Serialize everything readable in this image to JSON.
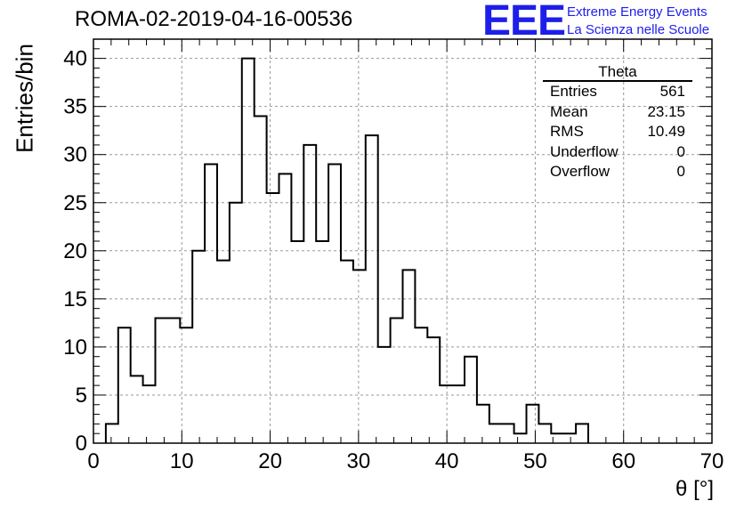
{
  "title": "ROMA-02-2019-04-16-00536",
  "logo": {
    "mark": "EEE",
    "line1": "Extreme Energy Events",
    "line2": "La Scienza nelle Scuole",
    "color": "#1e1eea"
  },
  "stats_box": {
    "header": "Theta",
    "rows": [
      {
        "label": "Entries",
        "value": "561"
      },
      {
        "label": "Mean",
        "value": "23.15"
      },
      {
        "label": "RMS",
        "value": "10.49"
      },
      {
        "label": "Underflow",
        "value": "0"
      },
      {
        "label": "Overflow",
        "value": "0"
      }
    ]
  },
  "chart_data": {
    "type": "histogram",
    "title": "ROMA-02-2019-04-16-00536",
    "xlabel": "θ [°]",
    "ylabel": "Entries/bin",
    "xlim": [
      0,
      70
    ],
    "ylim": [
      0,
      42
    ],
    "bin_width": 1.4,
    "bin_start": 1.4,
    "counts": [
      2,
      12,
      7,
      6,
      13,
      13,
      12,
      20,
      29,
      19,
      25,
      40,
      34,
      26,
      28,
      21,
      31,
      21,
      29,
      19,
      18,
      32,
      10,
      13,
      18,
      12,
      11,
      6,
      6,
      9,
      4,
      2,
      2,
      1,
      4,
      2,
      1,
      1,
      2
    ],
    "x_ticks": [
      0,
      10,
      20,
      30,
      40,
      50,
      60,
      70
    ],
    "y_ticks": [
      0,
      5,
      10,
      15,
      20,
      25,
      30,
      35,
      40
    ],
    "grid": true,
    "line_color": "#000000"
  }
}
